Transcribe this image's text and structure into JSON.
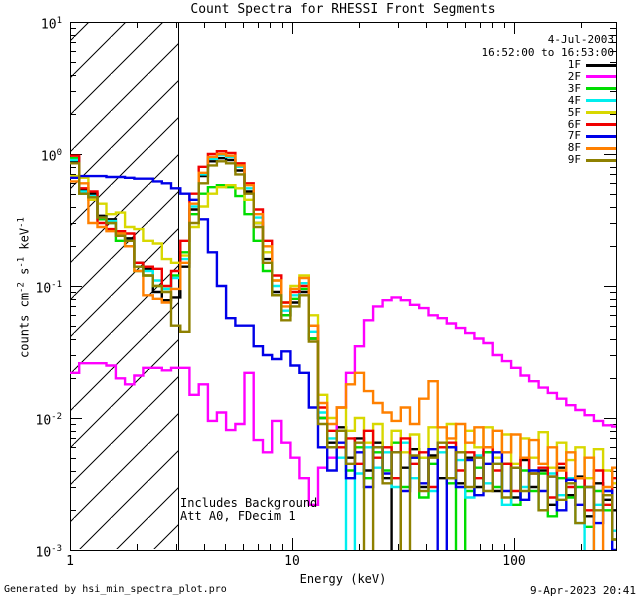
{
  "header": {
    "title": "Count Spectra for RHESSI Front Segments"
  },
  "info": {
    "date": "4-Jul-2003",
    "time_range": "16:52:00 to 16:53:00"
  },
  "annotations": {
    "line1": "Includes Background",
    "line2": "Att A0, FDecim 1"
  },
  "footer": {
    "left": "Generated by hsi_min_spectra_plot.pro",
    "right": "9-Apr-2023 20:41"
  },
  "chart_data": {
    "type": "line",
    "title": "Count Spectra for RHESSI Front Segments",
    "xlabel": "Energy (keV)",
    "ylabel": "counts cm^-2 s^-1 keV^-1",
    "ylabel_segments": [
      {
        "text": "counts cm"
      },
      {
        "sup": "-2"
      },
      {
        "text": " s"
      },
      {
        "sup": "-1"
      },
      {
        "text": " keV"
      },
      {
        "sup": "-1"
      }
    ],
    "xscale": "log",
    "yscale": "log",
    "xlim": [
      1,
      288
    ],
    "ylim": [
      0.001,
      10
    ],
    "grid": false,
    "legend_position": "top-right",
    "hatch_region_max_kev": 3.05,
    "x_ticks": [
      {
        "value": 1,
        "label": "1"
      },
      {
        "value": 10,
        "label": "10"
      },
      {
        "value": 100,
        "label": "100"
      }
    ],
    "y_ticks": [
      {
        "base": "10",
        "exp": "1"
      },
      {
        "base": "10",
        "exp": "0"
      },
      {
        "base": "10",
        "exp": "-1"
      },
      {
        "base": "10",
        "exp": "-2"
      },
      {
        "base": "10",
        "exp": "-3"
      }
    ],
    "energies_kev": [
      1.0,
      1.1,
      1.21,
      1.33,
      1.46,
      1.61,
      1.77,
      1.95,
      2.14,
      2.36,
      2.59,
      2.85,
      3.14,
      3.45,
      3.8,
      4.18,
      4.59,
      5.05,
      5.56,
      6.11,
      6.72,
      7.4,
      8.14,
      8.95,
      9.84,
      10.8,
      11.9,
      13.1,
      14.4,
      15.9,
      17.5,
      19.2,
      21.1,
      23.2,
      25.6,
      28.1,
      30.9,
      34.0,
      37.4,
      41.2,
      45.3,
      49.8,
      54.8,
      60.3,
      66.3,
      72.9,
      80.2,
      88.2,
      97.0,
      107,
      117,
      129,
      142,
      156,
      172,
      189,
      208,
      229,
      252,
      277
    ],
    "series": [
      {
        "name": "1F",
        "color": "#000000",
        "values": [
          0.88,
          0.53,
          0.5,
          0.34,
          0.32,
          0.25,
          0.23,
          0.15,
          0.135,
          0.09,
          0.078,
          0.082,
          0.14,
          0.38,
          0.68,
          0.88,
          0.93,
          0.9,
          0.75,
          0.52,
          0.3,
          0.16,
          0.09,
          0.06,
          0.075,
          0.09,
          0.04,
          0.01,
          0.0065,
          0.0085,
          0.005,
          0.007,
          0.004,
          0.0065,
          0.0035,
          0.0009,
          0.0042,
          0.0058,
          0.003,
          0.0052,
          0.0035,
          0.006,
          0.0032,
          0.005,
          0.003,
          0.0055,
          0.0028,
          0.0045,
          0.0025,
          0.0048,
          0.003,
          0.004,
          0.0022,
          0.0042,
          0.0026,
          0.0036,
          0.0018,
          0.0032,
          0.0024,
          0.002
        ]
      },
      {
        "name": "2F",
        "color": "#FF00FF",
        "values": [
          0.022,
          0.026,
          0.026,
          0.026,
          0.025,
          0.02,
          0.018,
          0.021,
          0.024,
          0.024,
          0.023,
          0.024,
          0.024,
          0.015,
          0.018,
          0.0095,
          0.011,
          0.0081,
          0.009,
          0.022,
          0.0068,
          0.0055,
          0.0095,
          0.0065,
          0.005,
          0.0035,
          0.0022,
          0.0042,
          0.005,
          0.012,
          0.022,
          0.035,
          0.055,
          0.07,
          0.078,
          0.082,
          0.078,
          0.072,
          0.068,
          0.06,
          0.057,
          0.052,
          0.048,
          0.044,
          0.04,
          0.037,
          0.03,
          0.027,
          0.024,
          0.021,
          0.019,
          0.017,
          0.0155,
          0.014,
          0.0125,
          0.0115,
          0.0105,
          0.0095,
          0.0088,
          0.0086
        ]
      },
      {
        "name": "3F",
        "color": "#00DD00",
        "values": [
          0.93,
          0.5,
          0.47,
          0.32,
          0.3,
          0.22,
          0.2,
          0.13,
          0.12,
          0.1,
          0.095,
          0.12,
          0.18,
          0.35,
          0.5,
          0.56,
          0.58,
          0.56,
          0.48,
          0.35,
          0.22,
          0.13,
          0.085,
          0.06,
          0.08,
          0.095,
          0.04,
          0.01,
          0.006,
          0.008,
          0.004,
          0.006,
          0.0035,
          0.0055,
          0.004,
          0.0065,
          0.003,
          0.005,
          0.0025,
          0.0045,
          0.006,
          0.0032,
          0.0009,
          0.0028,
          0.0042,
          0.0055,
          0.003,
          0.0045,
          0.0022,
          0.004,
          0.0028,
          0.0038,
          0.0018,
          0.0035,
          0.0025,
          0.003,
          0.0015,
          0.0028,
          0.002,
          0.0012
        ]
      },
      {
        "name": "4F",
        "color": "#00EEEE",
        "values": [
          0.9,
          0.52,
          0.48,
          0.33,
          0.31,
          0.24,
          0.22,
          0.14,
          0.13,
          0.11,
          0.095,
          0.115,
          0.16,
          0.4,
          0.7,
          0.92,
          0.98,
          0.95,
          0.8,
          0.55,
          0.33,
          0.18,
          0.1,
          0.065,
          0.085,
          0.105,
          0.045,
          0.011,
          0.007,
          0.005,
          0.0008,
          0.0038,
          0.006,
          0.0042,
          0.0055,
          0.003,
          0.0065,
          0.0035,
          0.005,
          0.0028,
          0.0055,
          0.0035,
          0.0048,
          0.0025,
          0.0052,
          0.0032,
          0.0045,
          0.0022,
          0.0042,
          0.003,
          0.004,
          0.002,
          0.0038,
          0.0026,
          0.0035,
          0.0016,
          0.0008,
          0.0022,
          0.0028,
          0.0014
        ]
      },
      {
        "name": "5F",
        "color": "#D8D800",
        "values": [
          0.68,
          0.66,
          0.45,
          0.42,
          0.35,
          0.36,
          0.28,
          0.27,
          0.22,
          0.21,
          0.16,
          0.15,
          0.17,
          0.28,
          0.4,
          0.5,
          0.56,
          0.58,
          0.55,
          0.45,
          0.3,
          0.18,
          0.11,
          0.075,
          0.1,
          0.12,
          0.06,
          0.015,
          0.01,
          0.012,
          0.008,
          0.01,
          0.0065,
          0.009,
          0.006,
          0.008,
          0.0055,
          0.0075,
          0.005,
          0.0085,
          0.006,
          0.009,
          0.0055,
          0.008,
          0.006,
          0.0085,
          0.005,
          0.0075,
          0.0045,
          0.007,
          0.005,
          0.0078,
          0.0042,
          0.0065,
          0.0048,
          0.006,
          0.0035,
          0.0058,
          0.004,
          0.0032
        ]
      },
      {
        "name": "6F",
        "color": "#F00000",
        "values": [
          0.97,
          0.55,
          0.52,
          0.3,
          0.27,
          0.26,
          0.25,
          0.15,
          0.14,
          0.135,
          0.1,
          0.13,
          0.22,
          0.5,
          0.8,
          1.0,
          1.05,
          1.02,
          0.85,
          0.6,
          0.38,
          0.22,
          0.12,
          0.075,
          0.09,
          0.1,
          0.05,
          0.012,
          0.008,
          0.006,
          0.007,
          0.0045,
          0.008,
          0.005,
          0.006,
          0.0035,
          0.007,
          0.0045,
          0.0055,
          0.003,
          0.006,
          0.0065,
          0.004,
          0.0055,
          0.0035,
          0.006,
          0.004,
          0.0045,
          0.0028,
          0.005,
          0.0038,
          0.0042,
          0.0025,
          0.0045,
          0.003,
          0.0035,
          0.002,
          0.004,
          0.0022,
          0.0035
        ]
      },
      {
        "name": "7F",
        "color": "#0000E8",
        "values": [
          0.66,
          0.68,
          0.68,
          0.68,
          0.67,
          0.67,
          0.66,
          0.65,
          0.65,
          0.62,
          0.6,
          0.55,
          0.5,
          0.45,
          0.32,
          0.18,
          0.1,
          0.057,
          0.05,
          0.05,
          0.035,
          0.03,
          0.028,
          0.032,
          0.025,
          0.022,
          0.012,
          0.006,
          0.004,
          0.0065,
          0.0035,
          0.0055,
          0.003,
          0.006,
          0.0038,
          0.0055,
          0.0028,
          0.005,
          0.0032,
          0.0058,
          0.0008,
          0.006,
          0.003,
          0.0048,
          0.0026,
          0.0045,
          0.0055,
          0.0028,
          0.0042,
          0.0024,
          0.004,
          0.0028,
          0.0036,
          0.002,
          0.0034,
          0.0022,
          0.003,
          0.0016,
          0.0028,
          0.001
        ]
      },
      {
        "name": "8F",
        "color": "#FF8000",
        "values": [
          0.62,
          0.6,
          0.3,
          0.28,
          0.26,
          0.25,
          0.2,
          0.13,
          0.085,
          0.08,
          0.075,
          0.095,
          0.15,
          0.42,
          0.72,
          0.95,
          1.0,
          0.97,
          0.82,
          0.58,
          0.35,
          0.2,
          0.11,
          0.07,
          0.095,
          0.115,
          0.05,
          0.013,
          0.009,
          0.012,
          0.018,
          0.022,
          0.016,
          0.013,
          0.011,
          0.0095,
          0.012,
          0.009,
          0.014,
          0.019,
          0.0085,
          0.007,
          0.009,
          0.0065,
          0.0085,
          0.006,
          0.008,
          0.0055,
          0.0075,
          0.005,
          0.0068,
          0.0045,
          0.006,
          0.004,
          0.0055,
          0.0035,
          0.005,
          0.0009,
          0.003,
          0.0042
        ]
      },
      {
        "name": "9F",
        "color": "#8E8000",
        "values": [
          0.85,
          0.5,
          0.47,
          0.33,
          0.3,
          0.24,
          0.22,
          0.14,
          0.12,
          0.1,
          0.09,
          0.05,
          0.045,
          0.3,
          0.6,
          0.82,
          0.88,
          0.85,
          0.7,
          0.5,
          0.28,
          0.15,
          0.085,
          0.055,
          0.07,
          0.085,
          0.038,
          0.009,
          0.006,
          0.008,
          0.0045,
          0.0065,
          0.0008,
          0.006,
          0.0032,
          0.0055,
          0.0009,
          0.0052,
          0.0028,
          0.005,
          0.0065,
          0.0035,
          0.0055,
          0.003,
          0.005,
          0.0028,
          0.0045,
          0.0025,
          0.0042,
          0.0028,
          0.0038,
          0.002,
          0.0036,
          0.0024,
          0.0032,
          0.0016,
          0.003,
          0.002,
          0.0026,
          0.0012
        ]
      }
    ]
  }
}
